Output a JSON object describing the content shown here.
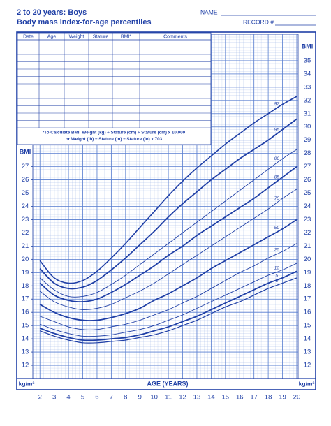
{
  "header": {
    "title": "2 to 20 years: Boys",
    "subtitle": "Body mass index-for-age percentiles",
    "name_label": "NAME",
    "record_label": "RECORD #"
  },
  "record_table": {
    "columns": [
      "Date",
      "Age",
      "Weight",
      "Stature",
      "BMI*",
      "Comments"
    ],
    "note_lines": [
      "*To Calculate BMI: Weight (kg) ÷ Stature (cm) ÷ Stature (cm) x 10,000",
      "or Weight (lb) ÷ Stature (in) ÷ Stature (in) x 703"
    ]
  },
  "chart_data": {
    "type": "line",
    "x_label": "AGE (YEARS)",
    "y_label": "BMI",
    "y2_label": "BMI",
    "y_unit": "kg/m²",
    "x": [
      2,
      3,
      4,
      5,
      6,
      7,
      8,
      9,
      10,
      11,
      12,
      13,
      14,
      15,
      16,
      17,
      18,
      19,
      20
    ],
    "xlim": [
      1.5,
      20.1
    ],
    "xticks": [
      2,
      3,
      4,
      5,
      6,
      7,
      8,
      9,
      10,
      11,
      12,
      13,
      14,
      15,
      16,
      17,
      18,
      19,
      20
    ],
    "ylim": [
      11,
      37
    ],
    "yticks": [
      12,
      13,
      14,
      15,
      16,
      17,
      18,
      19,
      20,
      21,
      22,
      23,
      24,
      25,
      26,
      27
    ],
    "y2lim": [
      11,
      37
    ],
    "y2ticks": [
      12,
      13,
      14,
      15,
      16,
      17,
      18,
      19,
      20,
      21,
      22,
      23,
      24,
      25,
      26,
      27,
      28,
      29,
      30,
      31,
      32,
      33,
      34,
      35
    ],
    "grid": true,
    "color": "#1f3fa6",
    "series": [
      {
        "name": "97",
        "color": "#1f3fa6",
        "line_width": 1.6,
        "values": [
          19.9,
          18.6,
          18.2,
          18.4,
          19.1,
          20.1,
          21.2,
          22.4,
          23.6,
          24.8,
          25.9,
          26.9,
          27.8,
          28.7,
          29.5,
          30.3,
          31.0,
          31.7,
          32.3
        ]
      },
      {
        "name": "95",
        "color": "#1f3fa6",
        "line_width": 1.8,
        "values": [
          19.3,
          18.2,
          17.8,
          17.9,
          18.4,
          19.2,
          20.1,
          21.1,
          22.1,
          23.2,
          24.2,
          25.1,
          26.0,
          26.8,
          27.6,
          28.3,
          29.0,
          29.8,
          30.6
        ]
      },
      {
        "name": "90",
        "color": "#1f3fa6",
        "line_width": 0.9,
        "values": [
          18.6,
          17.7,
          17.2,
          17.2,
          17.5,
          18.1,
          18.8,
          19.6,
          20.4,
          21.2,
          22.0,
          22.8,
          23.6,
          24.4,
          25.2,
          26.0,
          26.8,
          27.6,
          28.3
        ]
      },
      {
        "name": "85",
        "color": "#1f3fa6",
        "line_width": 1.8,
        "values": [
          18.2,
          17.3,
          16.9,
          16.8,
          17.0,
          17.5,
          18.1,
          18.8,
          19.5,
          20.3,
          21.0,
          21.8,
          22.5,
          23.2,
          23.9,
          24.6,
          25.4,
          26.2,
          27.0
        ]
      },
      {
        "name": "75",
        "color": "#1f3fa6",
        "line_width": 0.9,
        "values": [
          17.6,
          16.8,
          16.4,
          16.2,
          16.3,
          16.6,
          17.1,
          17.6,
          18.2,
          18.9,
          19.6,
          20.3,
          21.0,
          21.7,
          22.4,
          23.1,
          23.8,
          24.6,
          25.3
        ]
      },
      {
        "name": "50",
        "color": "#1f3fa6",
        "line_width": 1.8,
        "values": [
          16.6,
          16.0,
          15.6,
          15.4,
          15.4,
          15.6,
          15.9,
          16.3,
          16.9,
          17.4,
          18.0,
          18.6,
          19.3,
          19.9,
          20.5,
          21.1,
          21.7,
          22.3,
          23.0
        ]
      },
      {
        "name": "25",
        "color": "#1f3fa6",
        "line_width": 0.9,
        "values": [
          15.7,
          15.3,
          14.9,
          14.7,
          14.7,
          14.9,
          15.1,
          15.4,
          15.8,
          16.2,
          16.7,
          17.2,
          17.8,
          18.4,
          19.0,
          19.5,
          20.1,
          20.6,
          21.2
        ]
      },
      {
        "name": "10",
        "color": "#1f3fa6",
        "line_width": 0.9,
        "values": [
          15.1,
          14.7,
          14.4,
          14.2,
          14.2,
          14.3,
          14.5,
          14.7,
          15.0,
          15.4,
          15.8,
          16.3,
          16.8,
          17.3,
          17.8,
          18.3,
          18.8,
          19.2,
          19.7
        ]
      },
      {
        "name": "5",
        "color": "#1f3fa6",
        "line_width": 1.8,
        "values": [
          14.8,
          14.4,
          14.1,
          13.9,
          13.9,
          14.0,
          14.1,
          14.3,
          14.6,
          14.9,
          15.3,
          15.7,
          16.2,
          16.7,
          17.2,
          17.7,
          18.2,
          18.6,
          19.1
        ]
      },
      {
        "name": "3",
        "color": "#1f3fa6",
        "line_width": 1.2,
        "values": [
          14.6,
          14.2,
          13.9,
          13.7,
          13.7,
          13.8,
          13.9,
          14.1,
          14.3,
          14.6,
          15.0,
          15.4,
          15.9,
          16.4,
          16.8,
          17.3,
          17.8,
          18.2,
          18.6
        ]
      }
    ]
  }
}
